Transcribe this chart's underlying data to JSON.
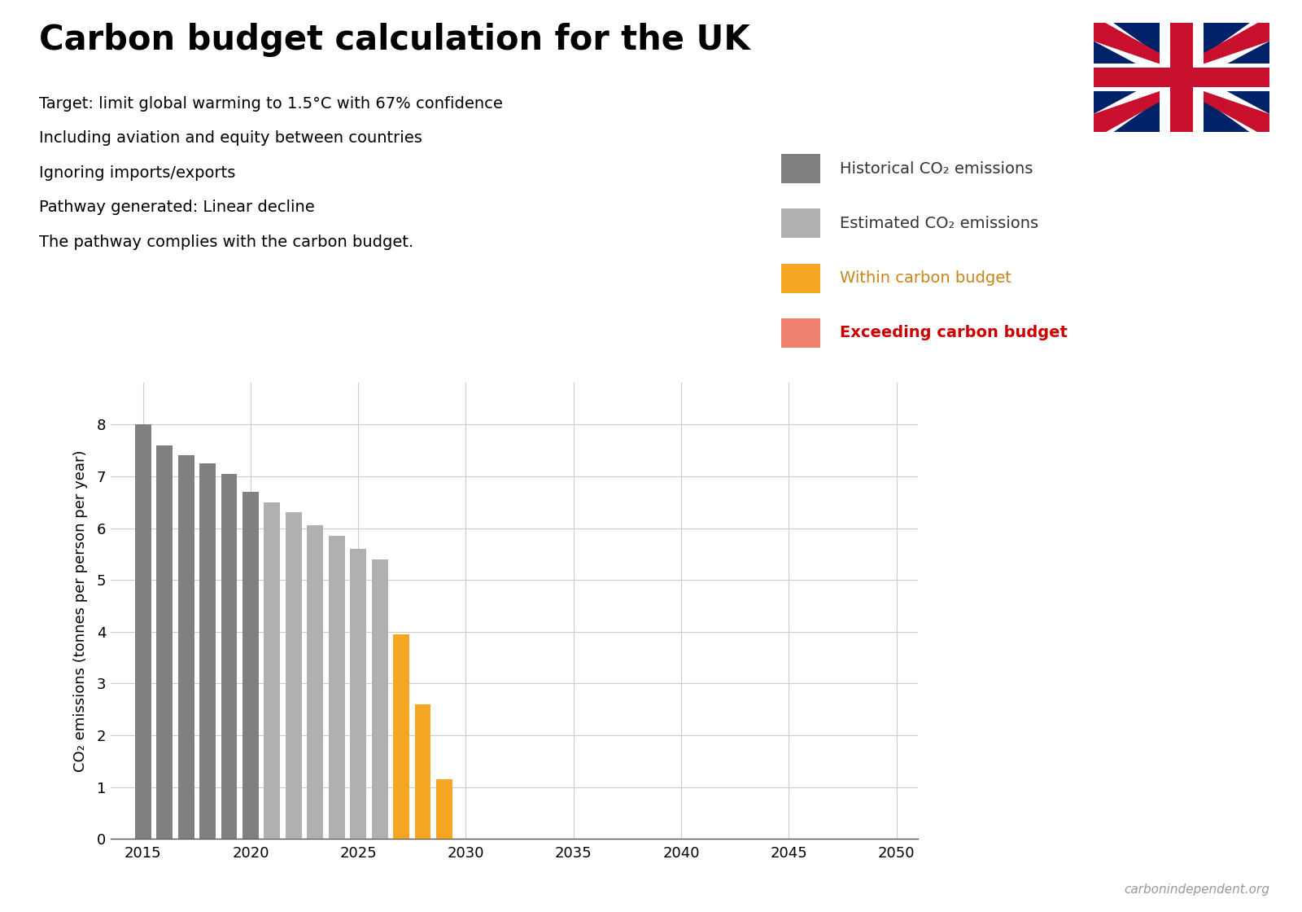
{
  "title": "Carbon budget calculation for the UK",
  "subtitle_lines": [
    "Target: limit global warming to 1.5°C with 67% confidence",
    "Including aviation and equity between countries",
    "Ignoring imports/exports",
    "Pathway generated: Linear decline",
    "The pathway complies with the carbon budget."
  ],
  "ylabel": "CO₂ emissions (tonnes per person per year)",
  "watermark": "carbonindependent.org",
  "xlim": [
    2013.5,
    2051
  ],
  "ylim": [
    0,
    8.8
  ],
  "yticks": [
    0,
    1,
    2,
    3,
    4,
    5,
    6,
    7,
    8
  ],
  "xticks": [
    2015,
    2020,
    2025,
    2030,
    2035,
    2040,
    2045,
    2050
  ],
  "bars": [
    {
      "year": 2015,
      "value": 8.0,
      "color": "#808080"
    },
    {
      "year": 2016,
      "value": 7.6,
      "color": "#808080"
    },
    {
      "year": 2017,
      "value": 7.4,
      "color": "#808080"
    },
    {
      "year": 2018,
      "value": 7.25,
      "color": "#808080"
    },
    {
      "year": 2019,
      "value": 7.05,
      "color": "#808080"
    },
    {
      "year": 2020,
      "value": 6.7,
      "color": "#808080"
    },
    {
      "year": 2021,
      "value": 6.5,
      "color": "#b0b0b0"
    },
    {
      "year": 2022,
      "value": 6.3,
      "color": "#b0b0b0"
    },
    {
      "year": 2023,
      "value": 6.05,
      "color": "#b0b0b0"
    },
    {
      "year": 2024,
      "value": 5.85,
      "color": "#b0b0b0"
    },
    {
      "year": 2025,
      "value": 5.6,
      "color": "#b0b0b0"
    },
    {
      "year": 2026,
      "value": 5.4,
      "color": "#b0b0b0"
    },
    {
      "year": 2027,
      "value": 3.95,
      "color": "#f5a623"
    },
    {
      "year": 2028,
      "value": 2.6,
      "color": "#f5a623"
    },
    {
      "year": 2029,
      "value": 1.15,
      "color": "#f5a623"
    }
  ],
  "legend_items": [
    {
      "label": "Historical CO₂ emissions",
      "color": "#808080",
      "text_color": "#333333",
      "bold": false
    },
    {
      "label": "Estimated CO₂ emissions",
      "color": "#b0b0b0",
      "text_color": "#333333",
      "bold": false
    },
    {
      "label": "Within carbon budget",
      "color": "#f5a623",
      "text_color": "#c8851a",
      "bold": false
    },
    {
      "label": "Exceeding carbon budget",
      "color": "#f08070",
      "text_color": "#cc0000",
      "bold": true
    }
  ],
  "background_color": "#ffffff",
  "grid_color": "#cccccc",
  "title_fontsize": 30,
  "subtitle_fontsize": 14,
  "label_fontsize": 13,
  "tick_fontsize": 13,
  "legend_fontsize": 14
}
